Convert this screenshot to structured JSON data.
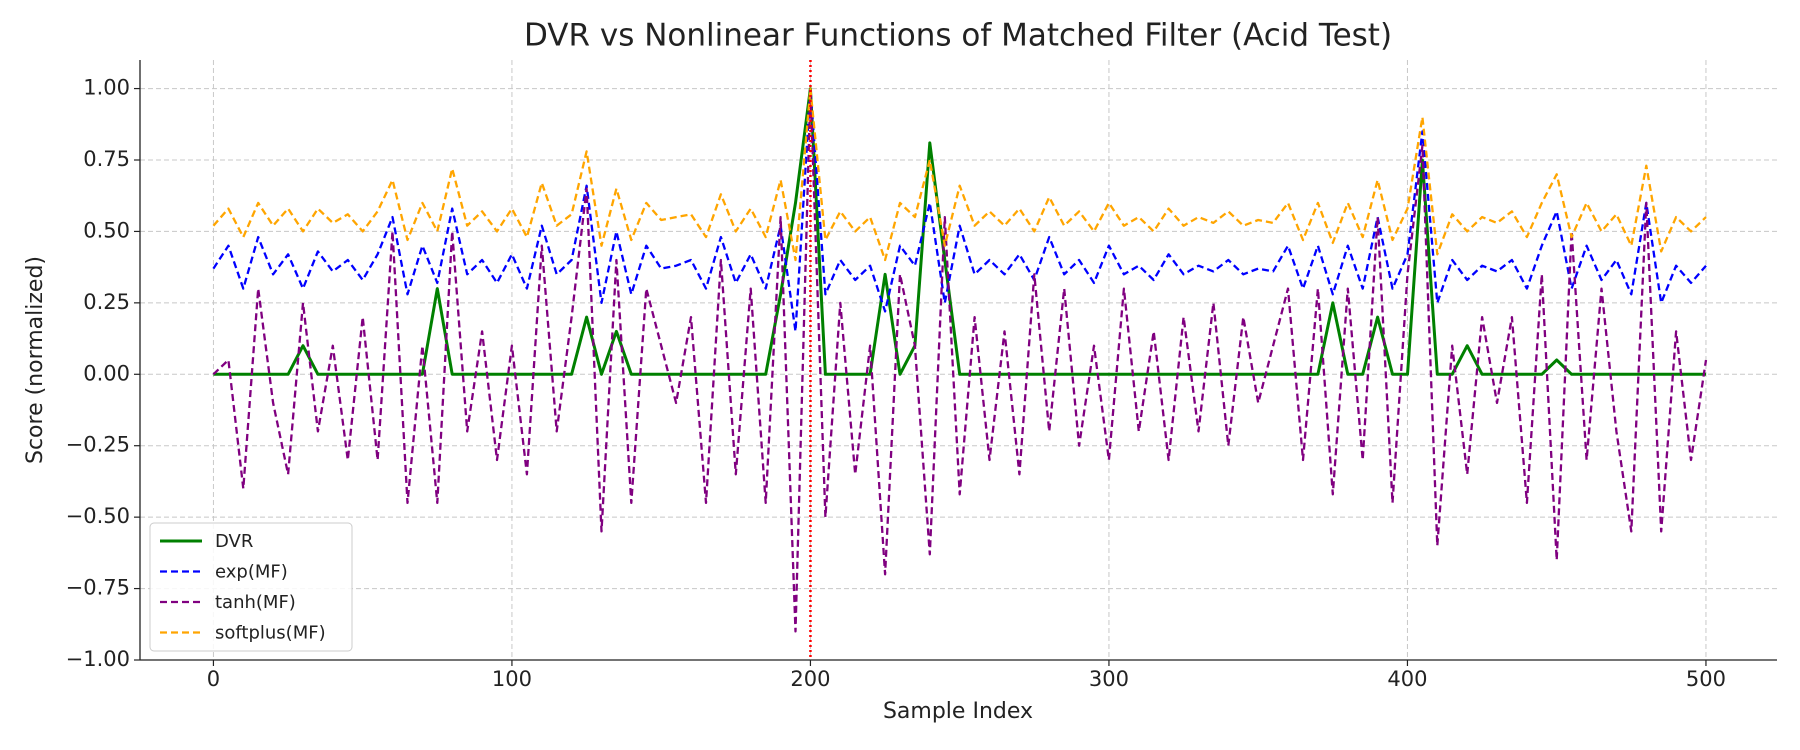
{
  "chart_data": {
    "type": "line",
    "title": "DVR vs Nonlinear Functions of Matched Filter (Acid Test)",
    "xlabel": "Sample Index",
    "ylabel": "Score (normalized)",
    "x": [
      0,
      5,
      10,
      15,
      20,
      25,
      30,
      35,
      40,
      45,
      50,
      55,
      60,
      65,
      70,
      75,
      80,
      85,
      90,
      95,
      100,
      105,
      110,
      115,
      120,
      125,
      130,
      135,
      140,
      145,
      150,
      155,
      160,
      165,
      170,
      175,
      180,
      185,
      190,
      195,
      200,
      205,
      210,
      215,
      220,
      225,
      230,
      235,
      240,
      245,
      250,
      255,
      260,
      265,
      270,
      275,
      280,
      285,
      290,
      295,
      300,
      305,
      310,
      315,
      320,
      325,
      330,
      335,
      340,
      345,
      350,
      355,
      360,
      365,
      370,
      375,
      380,
      385,
      390,
      395,
      400,
      405,
      410,
      415,
      420,
      425,
      430,
      435,
      440,
      445,
      450,
      455,
      460,
      465,
      470,
      475,
      480,
      485,
      490,
      495,
      500
    ],
    "series": [
      {
        "name": "DVR",
        "color": "#008000",
        "linestyle": "solid",
        "values": [
          0,
          0,
          0,
          0,
          0,
          0,
          0.1,
          0,
          0,
          0,
          0,
          0,
          0,
          0,
          0,
          0.3,
          0,
          0,
          0,
          0,
          0,
          0,
          0,
          0,
          0,
          0.2,
          0,
          0.15,
          0,
          0,
          0,
          0,
          0,
          0,
          0,
          0,
          0,
          0,
          0.28,
          0.6,
          1.0,
          0,
          0,
          0,
          0,
          0.35,
          0,
          0.1,
          0.81,
          0.4,
          0,
          0,
          0,
          0,
          0,
          0,
          0,
          0,
          0,
          0,
          0,
          0,
          0,
          0,
          0,
          0,
          0,
          0,
          0,
          0,
          0,
          0,
          0,
          0,
          0,
          0.25,
          0,
          0,
          0.2,
          0,
          0,
          0.75,
          0,
          0,
          0.1,
          0,
          0,
          0,
          0,
          0,
          0.05,
          0,
          0,
          0,
          0,
          0,
          0,
          0,
          0,
          0,
          0
        ]
      },
      {
        "name": "exp(MF)",
        "color": "#0000ff",
        "linestyle": "dashed",
        "values": [
          0.37,
          0.45,
          0.3,
          0.48,
          0.35,
          0.42,
          0.3,
          0.43,
          0.36,
          0.4,
          0.33,
          0.42,
          0.55,
          0.28,
          0.45,
          0.32,
          0.58,
          0.35,
          0.4,
          0.32,
          0.42,
          0.3,
          0.52,
          0.35,
          0.4,
          0.66,
          0.25,
          0.5,
          0.28,
          0.45,
          0.37,
          0.38,
          0.4,
          0.3,
          0.48,
          0.32,
          0.42,
          0.3,
          0.52,
          0.15,
          1.0,
          0.28,
          0.4,
          0.33,
          0.38,
          0.22,
          0.45,
          0.38,
          0.6,
          0.25,
          0.52,
          0.35,
          0.4,
          0.35,
          0.42,
          0.33,
          0.48,
          0.35,
          0.4,
          0.32,
          0.45,
          0.35,
          0.38,
          0.33,
          0.42,
          0.35,
          0.38,
          0.36,
          0.4,
          0.35,
          0.37,
          0.36,
          0.45,
          0.3,
          0.45,
          0.28,
          0.45,
          0.3,
          0.55,
          0.3,
          0.42,
          0.85,
          0.25,
          0.4,
          0.33,
          0.38,
          0.36,
          0.4,
          0.3,
          0.45,
          0.57,
          0.3,
          0.45,
          0.33,
          0.4,
          0.28,
          0.6,
          0.25,
          0.38,
          0.32,
          0.38
        ]
      },
      {
        "name": "tanh(MF)",
        "color": "#800080",
        "linestyle": "dashed",
        "values": [
          0,
          0.05,
          -0.4,
          0.3,
          -0.1,
          -0.35,
          0.25,
          -0.2,
          0.1,
          -0.3,
          0.2,
          -0.3,
          0.5,
          -0.45,
          0.1,
          -0.45,
          0.5,
          -0.2,
          0.15,
          -0.3,
          0.1,
          -0.35,
          0.45,
          -0.2,
          0.2,
          0.65,
          -0.55,
          0.4,
          -0.45,
          0.3,
          0.1,
          -0.1,
          0.2,
          -0.45,
          0.4,
          -0.35,
          0.3,
          -0.45,
          0.55,
          -0.9,
          1.0,
          -0.5,
          0.25,
          -0.35,
          0.1,
          -0.7,
          0.35,
          0.1,
          -0.63,
          0.55,
          -0.42,
          0.2,
          -0.3,
          0.15,
          -0.35,
          0.35,
          -0.2,
          0.3,
          -0.25,
          0.1,
          -0.3,
          0.3,
          -0.2,
          0.15,
          -0.3,
          0.2,
          -0.2,
          0.25,
          -0.25,
          0.2,
          -0.1,
          0.1,
          0.3,
          -0.3,
          0.3,
          -0.42,
          0.3,
          -0.3,
          0.55,
          -0.45,
          0.35,
          0.8,
          -0.6,
          0.1,
          -0.35,
          0.2,
          -0.1,
          0.2,
          -0.45,
          0.35,
          -0.65,
          0.5,
          -0.3,
          0.3,
          -0.2,
          -0.55,
          0.6,
          -0.55,
          0.15,
          -0.3,
          0.05
        ]
      },
      {
        "name": "softplus(MF)",
        "color": "#ffa500",
        "linestyle": "dashed",
        "values": [
          0.52,
          0.58,
          0.48,
          0.6,
          0.52,
          0.58,
          0.5,
          0.58,
          0.53,
          0.56,
          0.5,
          0.57,
          0.68,
          0.47,
          0.6,
          0.5,
          0.72,
          0.52,
          0.57,
          0.5,
          0.58,
          0.48,
          0.67,
          0.52,
          0.56,
          0.78,
          0.45,
          0.65,
          0.47,
          0.6,
          0.54,
          0.55,
          0.56,
          0.48,
          0.63,
          0.5,
          0.58,
          0.48,
          0.68,
          0.4,
          1.0,
          0.47,
          0.57,
          0.5,
          0.55,
          0.4,
          0.6,
          0.55,
          0.75,
          0.45,
          0.66,
          0.52,
          0.57,
          0.52,
          0.58,
          0.5,
          0.62,
          0.52,
          0.57,
          0.5,
          0.6,
          0.52,
          0.55,
          0.5,
          0.58,
          0.52,
          0.55,
          0.53,
          0.57,
          0.52,
          0.54,
          0.53,
          0.6,
          0.47,
          0.6,
          0.46,
          0.6,
          0.48,
          0.68,
          0.47,
          0.58,
          0.9,
          0.42,
          0.56,
          0.5,
          0.55,
          0.53,
          0.57,
          0.48,
          0.6,
          0.7,
          0.48,
          0.6,
          0.5,
          0.56,
          0.45,
          0.73,
          0.43,
          0.55,
          0.5,
          0.55
        ]
      }
    ],
    "vline": {
      "x": 200,
      "color": "#ff0000"
    },
    "xlim": [
      -24.6,
      523.8
    ],
    "ylim": [
      -1.0,
      1.1
    ],
    "xticks": [
      0,
      100,
      200,
      300,
      400,
      500
    ],
    "yticks": [
      {
        "value": -1.0,
        "label": "−1.00"
      },
      {
        "value": -0.75,
        "label": "−0.75"
      },
      {
        "value": -0.5,
        "label": "−0.50"
      },
      {
        "value": -0.25,
        "label": "−0.25"
      },
      {
        "value": 0,
        "label": "0.00"
      },
      {
        "value": 0.25,
        "label": "0.25"
      },
      {
        "value": 0.5,
        "label": "0.50"
      },
      {
        "value": 0.75,
        "label": "0.75"
      },
      {
        "value": 1.0,
        "label": "1.00"
      }
    ],
    "grid": true,
    "legend": "lower left"
  }
}
